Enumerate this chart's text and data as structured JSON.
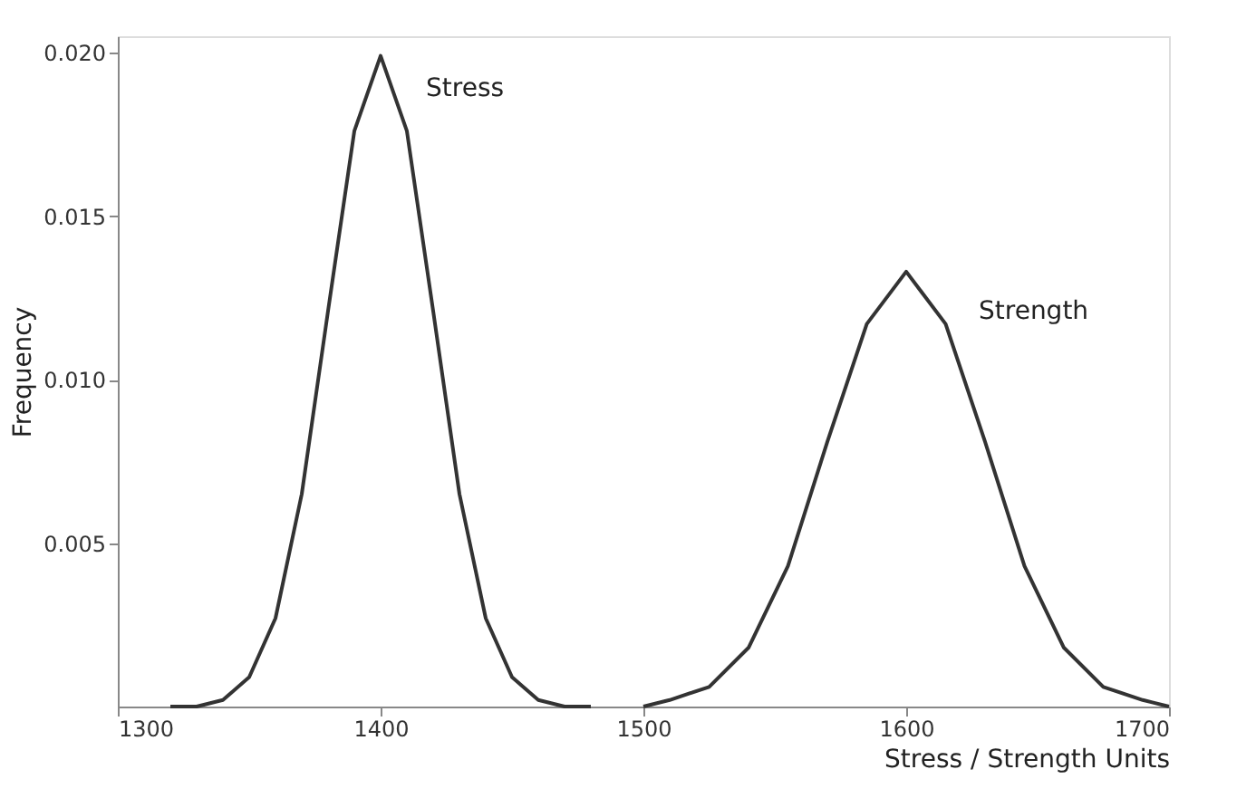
{
  "chart_data": {
    "type": "line",
    "xlabel": "Stress / Strength Units",
    "ylabel": "Frequency",
    "xlim": [
      1300,
      1700
    ],
    "xticks": [
      1300,
      1400,
      1500,
      1600,
      1700
    ],
    "ylim": [
      0,
      0.0205
    ],
    "yticks": [
      {
        "value": 0.005,
        "label": "0.005"
      },
      {
        "value": 0.01,
        "label": "0.010"
      },
      {
        "value": 0.015,
        "label": "0.015"
      },
      {
        "value": 0.02,
        "label": "0.020"
      }
    ],
    "grid": false,
    "legend": false,
    "marker": "none",
    "line_style": "solid",
    "series": [
      {
        "name": "Stress",
        "color": "#333333",
        "x": [
          1320,
          1330,
          1340,
          1350,
          1360,
          1370,
          1380,
          1390,
          1400,
          1410,
          1420,
          1430,
          1440,
          1450,
          1460,
          1470,
          1480
        ],
        "values": [
          0,
          0,
          0.0002,
          0.0009,
          0.0027,
          0.0065,
          0.0121,
          0.0176,
          0.0199,
          0.0176,
          0.0121,
          0.0065,
          0.0027,
          0.0009,
          0.0002,
          0,
          0
        ]
      },
      {
        "name": "Strength",
        "color": "#333333",
        "x": [
          1500,
          1510,
          1525,
          1540,
          1555,
          1570,
          1585,
          1600,
          1615,
          1630,
          1645,
          1660,
          1675,
          1690,
          1700
        ],
        "values": [
          0,
          0.0002,
          0.0006,
          0.0018,
          0.0043,
          0.0081,
          0.0117,
          0.0133,
          0.0117,
          0.0081,
          0.0043,
          0.0018,
          0.0006,
          0.0002,
          0
        ]
      }
    ]
  }
}
